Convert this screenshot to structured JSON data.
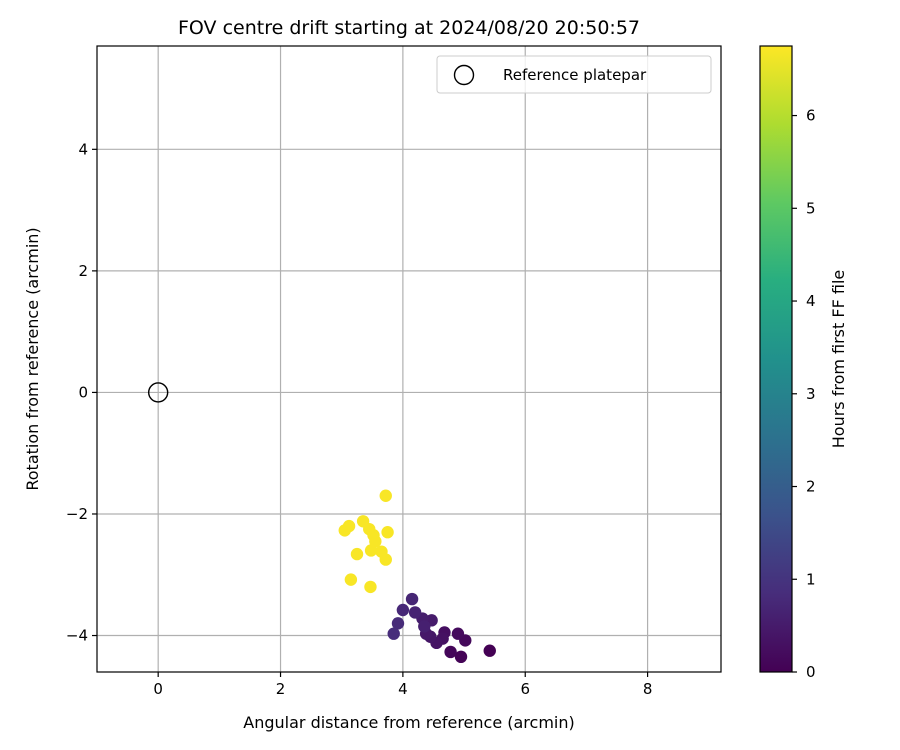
{
  "chart_data": {
    "type": "scatter",
    "title": "FOV centre drift starting at 2024/08/20 20:50:57",
    "xlabel": "Angular distance from reference (arcmin)",
    "ylabel": "Rotation from reference (arcmin)",
    "xlim": [
      -1.0,
      9.2
    ],
    "ylim": [
      -4.6,
      5.7
    ],
    "xticks": [
      0,
      2,
      4,
      6,
      8
    ],
    "yticks": [
      -4,
      -2,
      0,
      2,
      4
    ],
    "grid": true,
    "legend": {
      "placement": "top-right",
      "entries": [
        "Reference platepar"
      ]
    },
    "reference_point": {
      "name": "Reference platepar",
      "x": 0,
      "y": 0
    },
    "colorbar": {
      "label": "Hours from first FF file",
      "colormap": "viridis",
      "range": [
        0,
        6.75
      ],
      "ticks": [
        0,
        1,
        2,
        3,
        4,
        5,
        6
      ]
    },
    "points": [
      {
        "x": 5.42,
        "y": -4.25,
        "c": 0.0
      },
      {
        "x": 4.95,
        "y": -4.35,
        "c": 0.05
      },
      {
        "x": 4.78,
        "y": -4.27,
        "c": 0.1
      },
      {
        "x": 5.02,
        "y": -4.08,
        "c": 0.15
      },
      {
        "x": 4.9,
        "y": -3.97,
        "c": 0.2
      },
      {
        "x": 4.68,
        "y": -3.95,
        "c": 0.25
      },
      {
        "x": 4.65,
        "y": -4.05,
        "c": 0.3
      },
      {
        "x": 4.55,
        "y": -4.12,
        "c": 0.35
      },
      {
        "x": 4.45,
        "y": -4.02,
        "c": 0.4
      },
      {
        "x": 4.38,
        "y": -3.97,
        "c": 0.45
      },
      {
        "x": 4.47,
        "y": -3.75,
        "c": 0.5
      },
      {
        "x": 4.32,
        "y": -3.72,
        "c": 0.55
      },
      {
        "x": 4.35,
        "y": -3.85,
        "c": 0.6
      },
      {
        "x": 4.2,
        "y": -3.62,
        "c": 0.65
      },
      {
        "x": 4.15,
        "y": -3.4,
        "c": 0.7
      },
      {
        "x": 4.0,
        "y": -3.58,
        "c": 0.75
      },
      {
        "x": 3.92,
        "y": -3.8,
        "c": 0.8
      },
      {
        "x": 3.85,
        "y": -3.97,
        "c": 0.85
      },
      {
        "x": 3.47,
        "y": -3.2,
        "c": 6.7
      },
      {
        "x": 3.15,
        "y": -3.08,
        "c": 6.7
      },
      {
        "x": 3.72,
        "y": -2.75,
        "c": 6.7
      },
      {
        "x": 3.65,
        "y": -2.62,
        "c": 6.7
      },
      {
        "x": 3.48,
        "y": -2.6,
        "c": 6.7
      },
      {
        "x": 3.25,
        "y": -2.66,
        "c": 6.7
      },
      {
        "x": 3.55,
        "y": -2.45,
        "c": 6.7
      },
      {
        "x": 3.52,
        "y": -2.35,
        "c": 6.7
      },
      {
        "x": 3.45,
        "y": -2.25,
        "c": 6.7
      },
      {
        "x": 3.75,
        "y": -2.3,
        "c": 6.7
      },
      {
        "x": 3.05,
        "y": -2.27,
        "c": 6.7
      },
      {
        "x": 3.12,
        "y": -2.2,
        "c": 6.7
      },
      {
        "x": 3.35,
        "y": -2.12,
        "c": 6.7
      },
      {
        "x": 3.72,
        "y": -1.7,
        "c": 6.7
      }
    ]
  }
}
